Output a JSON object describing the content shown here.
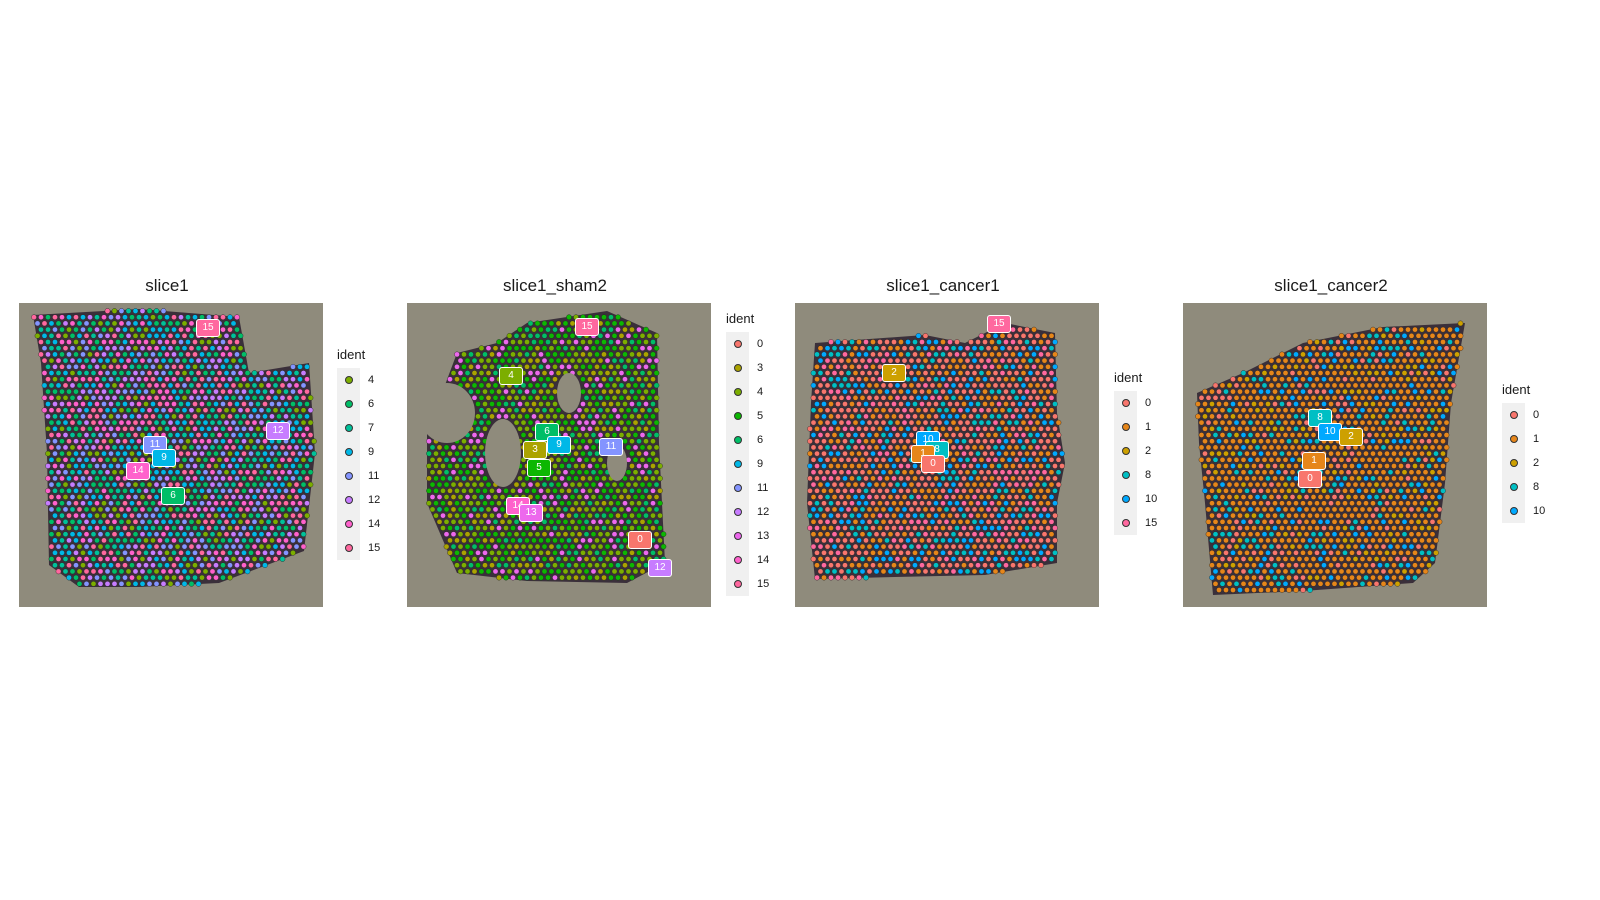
{
  "palette": {
    "0": "#F8766D",
    "1": "#E6861A",
    "2": "#CDA000",
    "3": "#ABA300",
    "4": "#7CAE00",
    "5": "#0CB702",
    "6": "#00BE67",
    "7": "#00C19A",
    "8": "#00BFC4",
    "9": "#00B8E7",
    "10": "#00A9FF",
    "11": "#8494FF",
    "12": "#C77CFF",
    "13": "#ED68ED",
    "14": "#FF61CC",
    "15": "#FF689F"
  },
  "panels": [
    {
      "title": "slice1",
      "legend_title": "ident",
      "legend_items": [
        "4",
        "6",
        "7",
        "9",
        "11",
        "12",
        "14",
        "15"
      ],
      "labels": [
        "15",
        "12",
        "11",
        "9",
        "14",
        "6"
      ],
      "spot_idents": [
        "4",
        "6",
        "7",
        "9",
        "11",
        "12",
        "14",
        "15"
      ]
    },
    {
      "title": "slice1_sham2",
      "legend_title": "ident",
      "legend_items": [
        "0",
        "3",
        "4",
        "5",
        "6",
        "9",
        "11",
        "12",
        "13",
        "14",
        "15"
      ],
      "labels": [
        "15",
        "4",
        "6",
        "3",
        "9",
        "11",
        "5",
        "14",
        "13",
        "0",
        "12"
      ],
      "spot_idents": [
        "4",
        "5",
        "3",
        "6",
        "4",
        "5",
        "13"
      ]
    },
    {
      "title": "slice1_cancer1",
      "legend_title": "ident",
      "legend_items": [
        "0",
        "1",
        "2",
        "8",
        "10",
        "15"
      ],
      "labels": [
        "15",
        "2",
        "10",
        "8",
        "1",
        "0"
      ],
      "spot_idents": [
        "0",
        "1",
        "0",
        "8",
        "10",
        "15",
        "0",
        "1"
      ]
    },
    {
      "title": "slice1_cancer2",
      "legend_title": "ident",
      "legend_items": [
        "0",
        "1",
        "2",
        "8",
        "10"
      ],
      "labels": [
        "8",
        "10",
        "2",
        "1",
        "0"
      ],
      "spot_idents": [
        "1",
        "1",
        "1",
        "1",
        "1",
        "1",
        "10",
        "2",
        "0",
        "8"
      ]
    }
  ]
}
